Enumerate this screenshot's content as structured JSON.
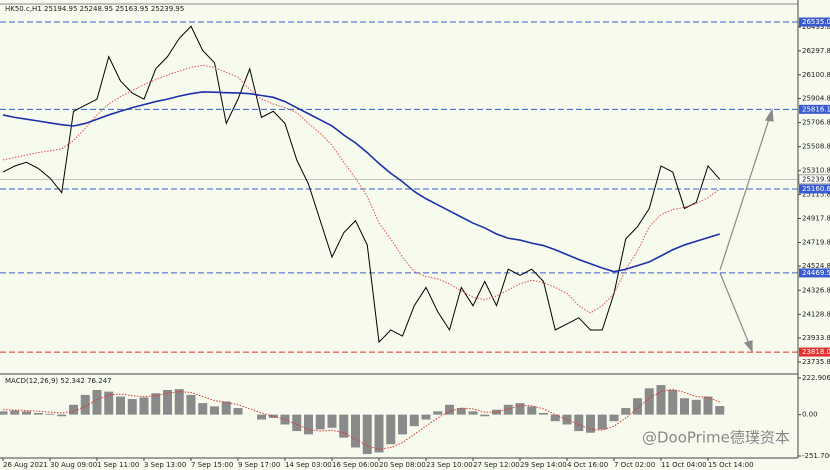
{
  "header": {
    "symbol_ohlc": "HK50.c,H1 25194.95 25248.95 25163.95 25239.95"
  },
  "watermark": "@DooPrime德璞资本",
  "chart_data": [
    {
      "type": "line",
      "categories": [
        "26 Aug 2021",
        null,
        null,
        null,
        "30 Aug 09:00",
        null,
        null,
        null,
        "1 Sep 11:00",
        null,
        null,
        null,
        "3 Sep 13:00",
        null,
        null,
        null,
        "7 Sep 15:00",
        null,
        null,
        null,
        "9 Sep 17:00",
        null,
        null,
        null,
        "14 Sep 03:00",
        null,
        null,
        null,
        "16 Sep 06:00",
        null,
        null,
        null,
        "20 Sep 08:00",
        null,
        null,
        null,
        "23 Sep 10:00",
        null,
        null,
        null,
        "27 Sep 12:00",
        null,
        null,
        null,
        "29 Sep 14:00",
        null,
        null,
        null,
        "4 Oct 16:00",
        null,
        null,
        null,
        "7 Oct 02:00",
        null,
        null,
        null,
        "11 Oct 04:00",
        null,
        null,
        null,
        "15 Oct 14:00",
        null
      ],
      "series": [
        {
          "color": "#000000",
          "values": [
            25300,
            25350,
            25380,
            25330,
            25250,
            25130,
            25800,
            25850,
            25900,
            26250,
            26050,
            25950,
            25900,
            26150,
            26250,
            26400,
            26500,
            26300,
            26200,
            25700,
            25900,
            26150,
            25750,
            25800,
            25700,
            25400,
            25200,
            24900,
            24600,
            24800,
            24900,
            24700,
            23900,
            24000,
            23950,
            24200,
            24350,
            24150,
            24000,
            24350,
            24200,
            24400,
            24200,
            24500,
            24450,
            24500,
            24400,
            24000,
            24050,
            24100,
            24000,
            24000,
            24300,
            24750,
            24850,
            25000,
            25350,
            25300,
            25000,
            25050,
            25350,
            25239.95
          ]
        },
        {
          "color": "#e05050",
          "dash": "dotted",
          "values": [
            25400,
            25420,
            25440,
            25460,
            25475,
            25490,
            25560,
            25660,
            25770,
            25860,
            25920,
            25970,
            26020,
            26060,
            26100,
            26130,
            26160,
            26180,
            26160,
            26120,
            26080,
            25980,
            25900,
            25860,
            25830,
            25790,
            25700,
            25620,
            25520,
            25380,
            25250,
            25100,
            24880,
            24750,
            24600,
            24480,
            24440,
            24420,
            24380,
            24320,
            24270,
            24250,
            24280,
            24330,
            24380,
            24410,
            24390,
            24350,
            24300,
            24200,
            24140,
            24200,
            24300,
            24500,
            24650,
            24850,
            24950,
            24990,
            25010,
            25040,
            25090,
            25160
          ]
        },
        {
          "color": "#1f2fa8",
          "values": [
            25770,
            25750,
            25735,
            25720,
            25704,
            25690,
            25679,
            25700,
            25735,
            25770,
            25800,
            25830,
            25855,
            25880,
            25900,
            25925,
            25945,
            25959,
            25957,
            25953,
            25951,
            25945,
            25930,
            25915,
            25880,
            25830,
            25780,
            25730,
            25680,
            25605,
            25540,
            25460,
            25370,
            25290,
            25220,
            25140,
            25080,
            25030,
            24980,
            24930,
            24880,
            24840,
            24790,
            24755,
            24740,
            24715,
            24695,
            24660,
            24620,
            24580,
            24545,
            24510,
            24480,
            24500,
            24530,
            24560,
            24610,
            24660,
            24700,
            24730,
            24760,
            24790
          ]
        }
      ],
      "ylim": [
        23654,
        26675
      ],
      "yticks": [
        {
          "value": 26493.8,
          "label": "26493.80"
        },
        {
          "value": 26297.8,
          "label": "26297.80"
        },
        {
          "value": 26100.8,
          "label": "26100.80"
        },
        {
          "value": 25904.8,
          "label": "25904.80"
        },
        {
          "value": 25706.8,
          "label": "25706.80"
        },
        {
          "value": 25508.8,
          "label": "25508.80"
        },
        {
          "value": 25310.8,
          "label": "25310.80"
        },
        {
          "value": 25115.8,
          "label": "25115.80"
        },
        {
          "value": 24917.8,
          "label": "24917.80"
        },
        {
          "value": 24719.8,
          "label": "24719.80"
        },
        {
          "value": 24524.8,
          "label": "24524.80"
        },
        {
          "value": 24326.8,
          "label": "24326.80"
        },
        {
          "value": 24128.8,
          "label": "24128.80"
        },
        {
          "value": 23933.8,
          "label": "23933.80"
        },
        {
          "value": 23735.8,
          "label": "23735.80"
        }
      ],
      "levels": [
        {
          "value": 26535,
          "label": "26535.00",
          "color": "#3a5bd0"
        },
        {
          "value": 25816.19,
          "label": "25816.19",
          "color": "#3a5bd0"
        },
        {
          "value": 25160.63,
          "label": "25160.63",
          "color": "#3a5bd0"
        },
        {
          "value": 24469.58,
          "label": "24469.58",
          "color": "#3a5bd0"
        },
        {
          "value": 23818,
          "label": "23818.00",
          "color": "#e03030"
        }
      ],
      "current_price": {
        "value": 25239.95,
        "label": "25239.95",
        "color": "#a0a0a0"
      }
    },
    {
      "type": "bar",
      "title": "MACD(12,26,9) 52.342 76.247",
      "series": [
        {
          "color": "#8a8a8a",
          "values": [
            20,
            25,
            20,
            10,
            5,
            -10,
            60,
            120,
            150,
            140,
            110,
            95,
            105,
            130,
            150,
            155,
            120,
            70,
            50,
            80,
            40,
            0,
            -30,
            -20,
            -60,
            -100,
            -120,
            -90,
            -80,
            -140,
            -200,
            -240,
            -230,
            -180,
            -120,
            -70,
            -30,
            20,
            60,
            40,
            20,
            -10,
            30,
            60,
            70,
            50,
            10,
            -40,
            -60,
            -100,
            -110,
            -90,
            -40,
            40,
            100,
            160,
            180,
            150,
            100,
            90,
            110,
            52.342
          ]
        },
        {
          "color": "#e03030",
          "dash": "dotted",
          "values": [
            30,
            28,
            25,
            20,
            15,
            10,
            20,
            50,
            90,
            120,
            125,
            115,
            110,
            115,
            130,
            140,
            135,
            110,
            85,
            75,
            60,
            35,
            10,
            -10,
            -30,
            -60,
            -90,
            -100,
            -95,
            -110,
            -150,
            -190,
            -210,
            -200,
            -170,
            -120,
            -70,
            -20,
            20,
            40,
            35,
            15,
            15,
            35,
            55,
            55,
            35,
            0,
            -30,
            -60,
            -90,
            -95,
            -70,
            -20,
            40,
            100,
            140,
            155,
            135,
            110,
            105,
            76.247
          ]
        }
      ],
      "ylim": [
        -251.706,
        222.906
      ],
      "yticks": [
        {
          "value": 222.906,
          "label": "222.906"
        },
        {
          "value": 0,
          "label": "0.00"
        },
        {
          "value": -251.706,
          "label": "-251.706"
        }
      ]
    }
  ]
}
